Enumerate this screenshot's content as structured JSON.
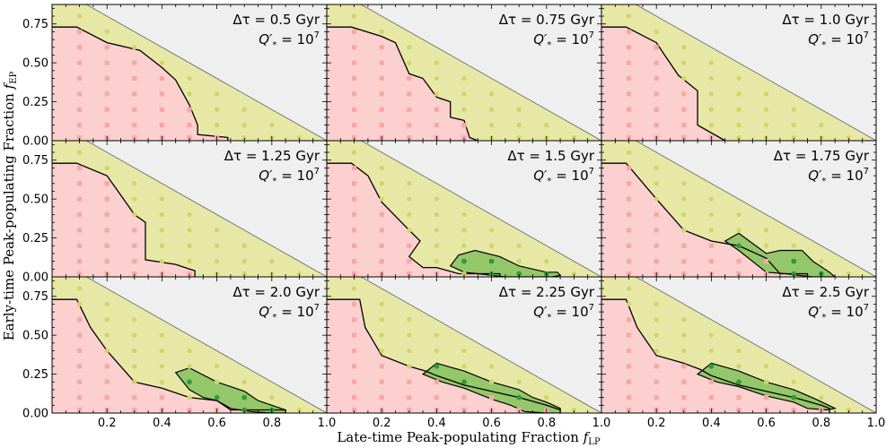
{
  "figure": {
    "xlabel": "Late-time Peak-populating Fraction",
    "xlabel_sym": "f",
    "xlabel_sub": "LP",
    "ylabel": "Early-time Peak-populating Fraction",
    "ylabel_sym": "f",
    "ylabel_sub": "EP",
    "q_label": "Q′",
    "q_sub": "*",
    "q_value": "= 10",
    "q_exp": "7",
    "colors": {
      "unphysical": "#efefef",
      "yellow_region": "#e8e8a6",
      "yellow_dot": "#cfd66a",
      "red_region": "#fdd0d0",
      "red_square": "#f6a7a7",
      "green_region": "#94c76a",
      "green_dot": "#2f9a3a",
      "boundary": "#000000",
      "diagonal": "#7a7a7a"
    }
  },
  "chart_data": {
    "type": "scatter",
    "layout": "3x3 grid of panels with shared axes",
    "xlim": [
      0,
      1
    ],
    "ylim": [
      0,
      0.875
    ],
    "x_ticks": [
      0.2,
      0.4,
      0.6,
      0.8
    ],
    "x_tick_labels": [
      "0.2",
      "0.4",
      "0.6",
      "0.8"
    ],
    "x_end_label": "1.0",
    "y_ticks": [
      0,
      0.25,
      0.5,
      0.75
    ],
    "y_tick_labels": [
      "0.00",
      "0.25",
      "0.50",
      "0.75"
    ],
    "diagonal": [
      [
        0,
        1
      ],
      [
        1,
        0
      ]
    ],
    "grid_points": {
      "x": [
        0.1,
        0.2,
        0.3,
        0.4,
        0.5,
        0.6,
        0.7,
        0.8,
        0.9
      ],
      "y": [
        0.02,
        0.1,
        0.2,
        0.3,
        0.4,
        0.5,
        0.6,
        0.7,
        0.8
      ],
      "rule": "plotted where x + y < 0.97"
    },
    "panels": [
      {
        "label": "Δτ = 0.5 Gyr",
        "red_boundary": [
          [
            0,
            0.73
          ],
          [
            0.09,
            0.73
          ],
          [
            0.2,
            0.63
          ],
          [
            0.32,
            0.58
          ],
          [
            0.4,
            0.47
          ],
          [
            0.45,
            0.39
          ],
          [
            0.5,
            0.23
          ],
          [
            0.53,
            0.1
          ],
          [
            0.53,
            0.04
          ],
          [
            0.64,
            0.02
          ],
          [
            0.64,
            0
          ]
        ],
        "green_regions": []
      },
      {
        "label": "Δτ = 0.75 Gyr",
        "red_boundary": [
          [
            0,
            0.73
          ],
          [
            0.09,
            0.73
          ],
          [
            0.2,
            0.67
          ],
          [
            0.25,
            0.63
          ],
          [
            0.3,
            0.43
          ],
          [
            0.35,
            0.4
          ],
          [
            0.4,
            0.28
          ],
          [
            0.45,
            0.25
          ],
          [
            0.45,
            0.15
          ],
          [
            0.5,
            0.13
          ],
          [
            0.52,
            0.02
          ],
          [
            0.55,
            0
          ]
        ],
        "green_regions": []
      },
      {
        "label": "Δτ = 1.0 Gyr",
        "red_boundary": [
          [
            0,
            0.73
          ],
          [
            0.09,
            0.73
          ],
          [
            0.2,
            0.63
          ],
          [
            0.23,
            0.55
          ],
          [
            0.28,
            0.42
          ],
          [
            0.35,
            0.32
          ],
          [
            0.35,
            0.1
          ],
          [
            0.43,
            0.02
          ],
          [
            0.45,
            0
          ]
        ],
        "green_regions": []
      },
      {
        "label": "Δτ = 1.25 Gyr",
        "red_boundary": [
          [
            0,
            0.73
          ],
          [
            0.09,
            0.73
          ],
          [
            0.2,
            0.65
          ],
          [
            0.3,
            0.4
          ],
          [
            0.34,
            0.35
          ],
          [
            0.34,
            0.11
          ],
          [
            0.45,
            0.08
          ],
          [
            0.5,
            0.05
          ],
          [
            0.52,
            0.04
          ],
          [
            0.52,
            0
          ]
        ],
        "green_regions": []
      },
      {
        "label": "Δτ = 1.5 Gyr",
        "red_boundary": [
          [
            0,
            0.73
          ],
          [
            0.09,
            0.73
          ],
          [
            0.15,
            0.65
          ],
          [
            0.2,
            0.48
          ],
          [
            0.3,
            0.3
          ],
          [
            0.34,
            0.23
          ],
          [
            0.3,
            0.13
          ],
          [
            0.35,
            0.06
          ],
          [
            0.4,
            0.06
          ],
          [
            0.48,
            0.02
          ],
          [
            0.63,
            0.02
          ],
          [
            0.63,
            0
          ]
        ],
        "green_regions": [
          [
            [
              0.45,
              0.07
            ],
            [
              0.48,
              0.14
            ],
            [
              0.54,
              0.17
            ],
            [
              0.63,
              0.13
            ],
            [
              0.7,
              0.07
            ],
            [
              0.8,
              0.03
            ],
            [
              0.84,
              0.03
            ],
            [
              0.85,
              0.01
            ],
            [
              0.82,
              0
            ],
            [
              0.65,
              0
            ],
            [
              0.6,
              0.01
            ],
            [
              0.55,
              0.02
            ],
            [
              0.5,
              0.03
            ]
          ]
        ]
      },
      {
        "label": "Δτ = 1.75 Gyr",
        "red_boundary": [
          [
            0,
            0.73
          ],
          [
            0.09,
            0.73
          ],
          [
            0.2,
            0.5
          ],
          [
            0.3,
            0.3
          ],
          [
            0.4,
            0.23
          ],
          [
            0.5,
            0.2
          ],
          [
            0.6,
            0.12
          ],
          [
            0.65,
            0.02
          ],
          [
            0.75,
            0.02
          ],
          [
            0.75,
            0
          ]
        ],
        "green_regions": [
          [
            [
              0.45,
              0.23
            ],
            [
              0.5,
              0.28
            ],
            [
              0.6,
              0.15
            ],
            [
              0.65,
              0.17
            ],
            [
              0.73,
              0.17
            ],
            [
              0.77,
              0.1
            ],
            [
              0.83,
              0.03
            ],
            [
              0.85,
              0
            ],
            [
              0.77,
              0
            ],
            [
              0.72,
              0.01
            ],
            [
              0.67,
              0.02
            ],
            [
              0.6,
              0.03
            ],
            [
              0.55,
              0.1
            ],
            [
              0.5,
              0.17
            ]
          ]
        ]
      },
      {
        "label": "Δτ = 2.0 Gyr",
        "red_boundary": [
          [
            0,
            0.73
          ],
          [
            0.09,
            0.73
          ],
          [
            0.14,
            0.55
          ],
          [
            0.2,
            0.4
          ],
          [
            0.3,
            0.2
          ],
          [
            0.4,
            0.16
          ],
          [
            0.5,
            0.1
          ],
          [
            0.6,
            0.08
          ],
          [
            0.65,
            0.02
          ],
          [
            0.85,
            0.02
          ],
          [
            0.85,
            0
          ]
        ],
        "green_regions": [
          [
            [
              0.45,
              0.26
            ],
            [
              0.5,
              0.29
            ],
            [
              0.6,
              0.2
            ],
            [
              0.7,
              0.14
            ],
            [
              0.75,
              0.08
            ],
            [
              0.8,
              0.05
            ],
            [
              0.85,
              0.02
            ],
            [
              0.85,
              0
            ],
            [
              0.8,
              0
            ],
            [
              0.72,
              0.01
            ],
            [
              0.65,
              0.03
            ],
            [
              0.6,
              0.08
            ],
            [
              0.55,
              0.1
            ],
            [
              0.5,
              0.15
            ]
          ]
        ]
      },
      {
        "label": "Δτ = 2.25 Gyr",
        "red_boundary": [
          [
            0,
            0.73
          ],
          [
            0.12,
            0.73
          ],
          [
            0.14,
            0.55
          ],
          [
            0.2,
            0.37
          ],
          [
            0.3,
            0.3
          ],
          [
            0.36,
            0.27
          ],
          [
            0.4,
            0.24
          ],
          [
            0.5,
            0.18
          ],
          [
            0.6,
            0.14
          ],
          [
            0.7,
            0.1
          ],
          [
            0.8,
            0.05
          ],
          [
            0.85,
            0.02
          ],
          [
            0.85,
            0
          ]
        ],
        "green_regions": [
          [
            [
              0.35,
              0.25
            ],
            [
              0.4,
              0.32
            ],
            [
              0.5,
              0.27
            ],
            [
              0.6,
              0.2
            ],
            [
              0.7,
              0.15
            ],
            [
              0.75,
              0.1
            ],
            [
              0.8,
              0.07
            ],
            [
              0.85,
              0.03
            ],
            [
              0.85,
              0
            ],
            [
              0.8,
              0
            ],
            [
              0.72,
              0.01
            ],
            [
              0.67,
              0.05
            ],
            [
              0.6,
              0.09
            ],
            [
              0.5,
              0.16
            ],
            [
              0.42,
              0.2
            ]
          ]
        ]
      },
      {
        "label": "Δτ = 2.5 Gyr",
        "red_boundary": [
          [
            0,
            0.73
          ],
          [
            0.09,
            0.73
          ],
          [
            0.13,
            0.55
          ],
          [
            0.2,
            0.37
          ],
          [
            0.3,
            0.32
          ],
          [
            0.36,
            0.28
          ],
          [
            0.4,
            0.24
          ],
          [
            0.5,
            0.18
          ],
          [
            0.6,
            0.14
          ],
          [
            0.7,
            0.1
          ],
          [
            0.8,
            0.05
          ],
          [
            0.83,
            0.03
          ],
          [
            0.83,
            0
          ]
        ],
        "green_regions": [
          [
            [
              0.35,
              0.25
            ],
            [
              0.4,
              0.32
            ],
            [
              0.5,
              0.27
            ],
            [
              0.6,
              0.2
            ],
            [
              0.7,
              0.15
            ],
            [
              0.78,
              0.09
            ],
            [
              0.85,
              0.03
            ],
            [
              0.82,
              0.02
            ],
            [
              0.75,
              0.03
            ],
            [
              0.7,
              0.07
            ],
            [
              0.6,
              0.11
            ],
            [
              0.5,
              0.17
            ],
            [
              0.42,
              0.2
            ]
          ]
        ]
      }
    ]
  }
}
